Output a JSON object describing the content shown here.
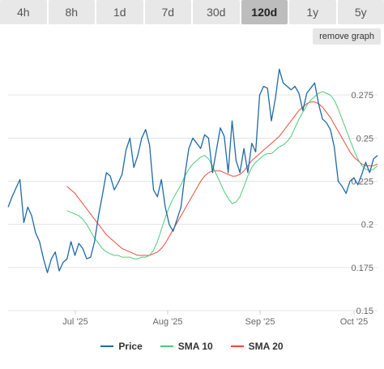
{
  "tabs": [
    {
      "label": "4h",
      "active": false
    },
    {
      "label": "8h",
      "active": false
    },
    {
      "label": "1d",
      "active": false
    },
    {
      "label": "7d",
      "active": false
    },
    {
      "label": "30d",
      "active": false
    },
    {
      "label": "120d",
      "active": true
    },
    {
      "label": "1y",
      "active": false
    },
    {
      "label": "5y",
      "active": false
    }
  ],
  "remove_graph_label": "remove graph",
  "chart_data": {
    "type": "line",
    "x_ticks": [
      "Jul '25",
      "Aug '25",
      "Sep '25",
      "Oct '25"
    ],
    "y_ticks": [
      "0.275",
      "0.25",
      "0.225",
      "0.2",
      "0.175",
      "0.15"
    ],
    "ylim": [
      0.15,
      0.3
    ],
    "grid": true,
    "legend_position": "bottom",
    "series": [
      {
        "name": "Price",
        "color": "#1f6aa5",
        "values": [
          0.21,
          0.216,
          0.221,
          0.226,
          0.201,
          0.21,
          0.205,
          0.195,
          0.19,
          0.18,
          0.172,
          0.18,
          0.184,
          0.173,
          0.178,
          0.18,
          0.19,
          0.182,
          0.189,
          0.186,
          0.18,
          0.181,
          0.19,
          0.205,
          0.217,
          0.23,
          0.228,
          0.22,
          0.224,
          0.229,
          0.243,
          0.25,
          0.233,
          0.24,
          0.25,
          0.255,
          0.246,
          0.22,
          0.216,
          0.226,
          0.21,
          0.2,
          0.196,
          0.203,
          0.21,
          0.229,
          0.244,
          0.25,
          0.247,
          0.244,
          0.252,
          0.25,
          0.23,
          0.243,
          0.256,
          0.251,
          0.23,
          0.26,
          0.237,
          0.23,
          0.244,
          0.23,
          0.247,
          0.242,
          0.275,
          0.28,
          0.279,
          0.26,
          0.273,
          0.29,
          0.282,
          0.28,
          0.278,
          0.28,
          0.276,
          0.266,
          0.276,
          0.279,
          0.282,
          0.27,
          0.261,
          0.259,
          0.255,
          0.245,
          0.225,
          0.222,
          0.218,
          0.225,
          0.227,
          0.223,
          0.229,
          0.236,
          0.23,
          0.238,
          0.24
        ]
      },
      {
        "name": "SMA 10",
        "color": "#4dca7a",
        "values": [
          0.208,
          0.207,
          0.206,
          0.205,
          0.203,
          0.2,
          0.196,
          0.192,
          0.189,
          0.186,
          0.184,
          0.183,
          0.182,
          0.182,
          0.181,
          0.181,
          0.181,
          0.18,
          0.18,
          0.181,
          0.181,
          0.182,
          0.185,
          0.19,
          0.197,
          0.204,
          0.21,
          0.215,
          0.219,
          0.223,
          0.228,
          0.232,
          0.235,
          0.237,
          0.239,
          0.24,
          0.238,
          0.234,
          0.229,
          0.224,
          0.219,
          0.215,
          0.212,
          0.213,
          0.216,
          0.222,
          0.228,
          0.233,
          0.236,
          0.238,
          0.24,
          0.241,
          0.241,
          0.243,
          0.245,
          0.246,
          0.248,
          0.251,
          0.256,
          0.261,
          0.265,
          0.269,
          0.272,
          0.274,
          0.276,
          0.277,
          0.276,
          0.275,
          0.272,
          0.267,
          0.261,
          0.255,
          0.249,
          0.243,
          0.238,
          0.234,
          0.232,
          0.231,
          0.232,
          0.234
        ]
      },
      {
        "name": "SMA 20",
        "color": "#e74c3c",
        "values": [
          0.222,
          0.22,
          0.218,
          0.215,
          0.212,
          0.209,
          0.206,
          0.203,
          0.2,
          0.197,
          0.194,
          0.192,
          0.19,
          0.188,
          0.186,
          0.185,
          0.184,
          0.183,
          0.182,
          0.182,
          0.182,
          0.182,
          0.183,
          0.184,
          0.186,
          0.189,
          0.193,
          0.197,
          0.201,
          0.205,
          0.209,
          0.213,
          0.217,
          0.221,
          0.225,
          0.228,
          0.23,
          0.231,
          0.231,
          0.231,
          0.23,
          0.229,
          0.228,
          0.228,
          0.229,
          0.231,
          0.234,
          0.237,
          0.239,
          0.241,
          0.243,
          0.245,
          0.247,
          0.249,
          0.251,
          0.254,
          0.257,
          0.26,
          0.263,
          0.266,
          0.268,
          0.27,
          0.271,
          0.271,
          0.27,
          0.268,
          0.265,
          0.262,
          0.258,
          0.254,
          0.25,
          0.246,
          0.242,
          0.239,
          0.237,
          0.235,
          0.234,
          0.234,
          0.234,
          0.235
        ]
      }
    ]
  }
}
